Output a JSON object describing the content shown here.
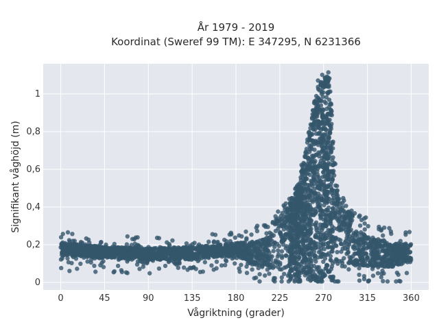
{
  "chart_data": {
    "type": "scatter",
    "title_lines": [
      "År 1979 - 2019",
      "Koordinat (Sweref 99 TM): E 347295, N 6231366"
    ],
    "xlabel": "Vågriktning (grader)",
    "ylabel": "Signifikant våghöjd (m)",
    "xlim": [
      -18,
      378
    ],
    "ylim": [
      -0.04,
      1.16
    ],
    "x_ticks": [
      0,
      45,
      90,
      135,
      180,
      225,
      270,
      315,
      360
    ],
    "x_tick_labels": [
      "0",
      "45",
      "90",
      "135",
      "180",
      "225",
      "270",
      "315",
      "360"
    ],
    "y_ticks": [
      0,
      0.2,
      0.4,
      0.6,
      0.8,
      1.0
    ],
    "y_tick_labels": [
      "0",
      "0,2",
      "0,4",
      "0,6",
      "0,8",
      "1"
    ],
    "grid": true,
    "marker_color": "#34566b",
    "background_color": "#e5e7ef",
    "series_envelope": {
      "x": [
        0,
        20,
        45,
        90,
        135,
        180,
        200,
        215,
        225,
        235,
        245,
        250,
        255,
        260,
        265,
        270,
        275,
        278,
        280,
        285,
        295,
        315,
        340,
        360
      ],
      "y_low": [
        0.12,
        0.12,
        0.11,
        0.1,
        0.1,
        0.12,
        0.05,
        0.02,
        0.01,
        0.01,
        0.01,
        0.01,
        0.01,
        0.01,
        0.01,
        0.01,
        0.01,
        0.01,
        0.01,
        0.02,
        0.02,
        0.03,
        0.04,
        0.08
      ],
      "y_high": [
        0.23,
        0.22,
        0.21,
        0.2,
        0.21,
        0.23,
        0.26,
        0.3,
        0.35,
        0.42,
        0.55,
        0.65,
        0.8,
        0.95,
        1.05,
        1.1,
        1.09,
        0.97,
        0.7,
        0.45,
        0.38,
        0.3,
        0.25,
        0.24
      ]
    }
  }
}
